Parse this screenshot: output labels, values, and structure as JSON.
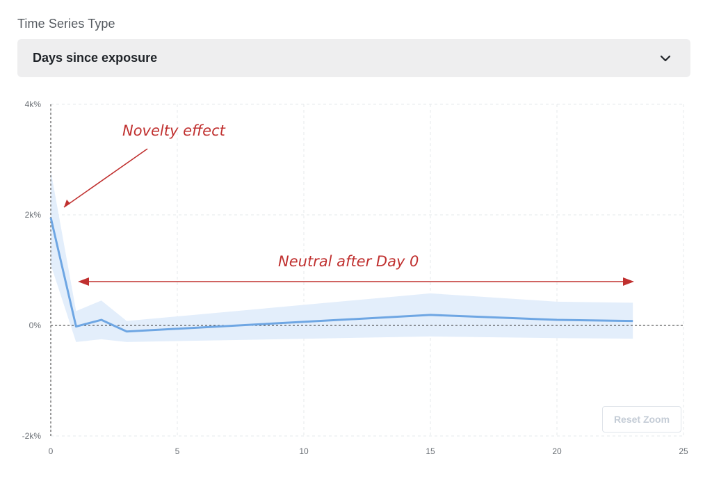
{
  "field": {
    "label": "Time Series Type",
    "selected": "Days since exposure",
    "chevron_icon": "chevron-down-icon"
  },
  "reset_zoom_label": "Reset Zoom",
  "annotations": {
    "novelty": "Novelty effect",
    "neutral": "Neutral after Day 0",
    "color": "#c0302f"
  },
  "chart_data": {
    "type": "line",
    "x_ticks": [
      "0",
      "5",
      "10",
      "15",
      "20",
      "25"
    ],
    "y_ticks": [
      "4k%",
      "2k%",
      "0%",
      "-2k%"
    ],
    "xlim": [
      0,
      25
    ],
    "ylim": [
      -2000,
      4000
    ],
    "grid": true,
    "series": [
      {
        "color": "#6ea6e3",
        "band_color": "#e3eefb",
        "x": [
          0,
          1,
          2,
          3,
          15,
          20,
          23
        ],
        "values": [
          1950,
          -20,
          100,
          -110,
          190,
          100,
          80
        ],
        "lower": [
          1100,
          -300,
          -250,
          -300,
          -200,
          -230,
          -240
        ],
        "upper": [
          2800,
          260,
          450,
          80,
          580,
          430,
          410
        ]
      }
    ]
  }
}
